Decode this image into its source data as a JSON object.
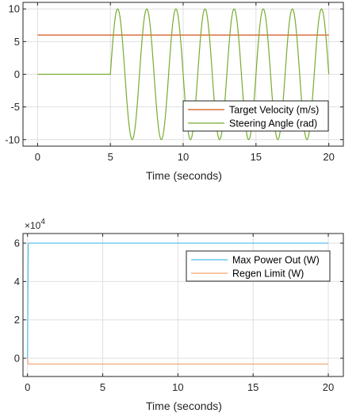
{
  "chart_data": [
    {
      "type": "line",
      "xlabel": "Time (seconds)",
      "ylabel": "",
      "xlim": [
        -1,
        21
      ],
      "ylim": [
        -11,
        11
      ],
      "xticks": [
        0,
        5,
        10,
        15,
        20
      ],
      "yticks": [
        -10,
        -5,
        0,
        5,
        10
      ],
      "x_tick_labels": [
        "0",
        "5",
        "10",
        "15",
        "20"
      ],
      "y_tick_labels": [
        "-10",
        "-5",
        "0",
        "5",
        "10"
      ],
      "grid": true,
      "legend_position": "lower-right",
      "series": [
        {
          "name": "Target Velocity (m/s)",
          "color": "#d95319",
          "x": [
            0,
            20
          ],
          "y": [
            6,
            6
          ]
        },
        {
          "name": "Steering Angle (rad)",
          "color": "#77ac30",
          "x": [
            0,
            5,
            20
          ],
          "y": [
            0,
            0,
            0
          ],
          "function": "0 for t<5; 10*sin(pi*(t-5)) for 5<=t<=20"
        }
      ]
    },
    {
      "type": "line",
      "xlabel": "Time (seconds)",
      "ylabel": "",
      "xlim": [
        -0.3,
        21
      ],
      "ylim": [
        -9500,
        65000
      ],
      "xticks": [
        0,
        5,
        10,
        15,
        20
      ],
      "yticks": [
        0,
        20000,
        40000,
        60000
      ],
      "x_tick_labels": [
        "0",
        "5",
        "10",
        "15",
        "20"
      ],
      "y_tick_labels": [
        "0",
        "2",
        "4",
        "6"
      ],
      "y_exponent_label": "×10",
      "y_exponent_power": "4",
      "grid": true,
      "legend_position": "top-right",
      "series": [
        {
          "name": "Max Power Out (W)",
          "color": "#4dbeee",
          "x": [
            0,
            0.05,
            20
          ],
          "y": [
            0,
            60000,
            60000
          ]
        },
        {
          "name": "Regen Limit (W)",
          "color": "#f4a36c",
          "x": [
            0,
            0.05,
            20
          ],
          "y": [
            0,
            -3000,
            -3000
          ]
        }
      ]
    }
  ]
}
